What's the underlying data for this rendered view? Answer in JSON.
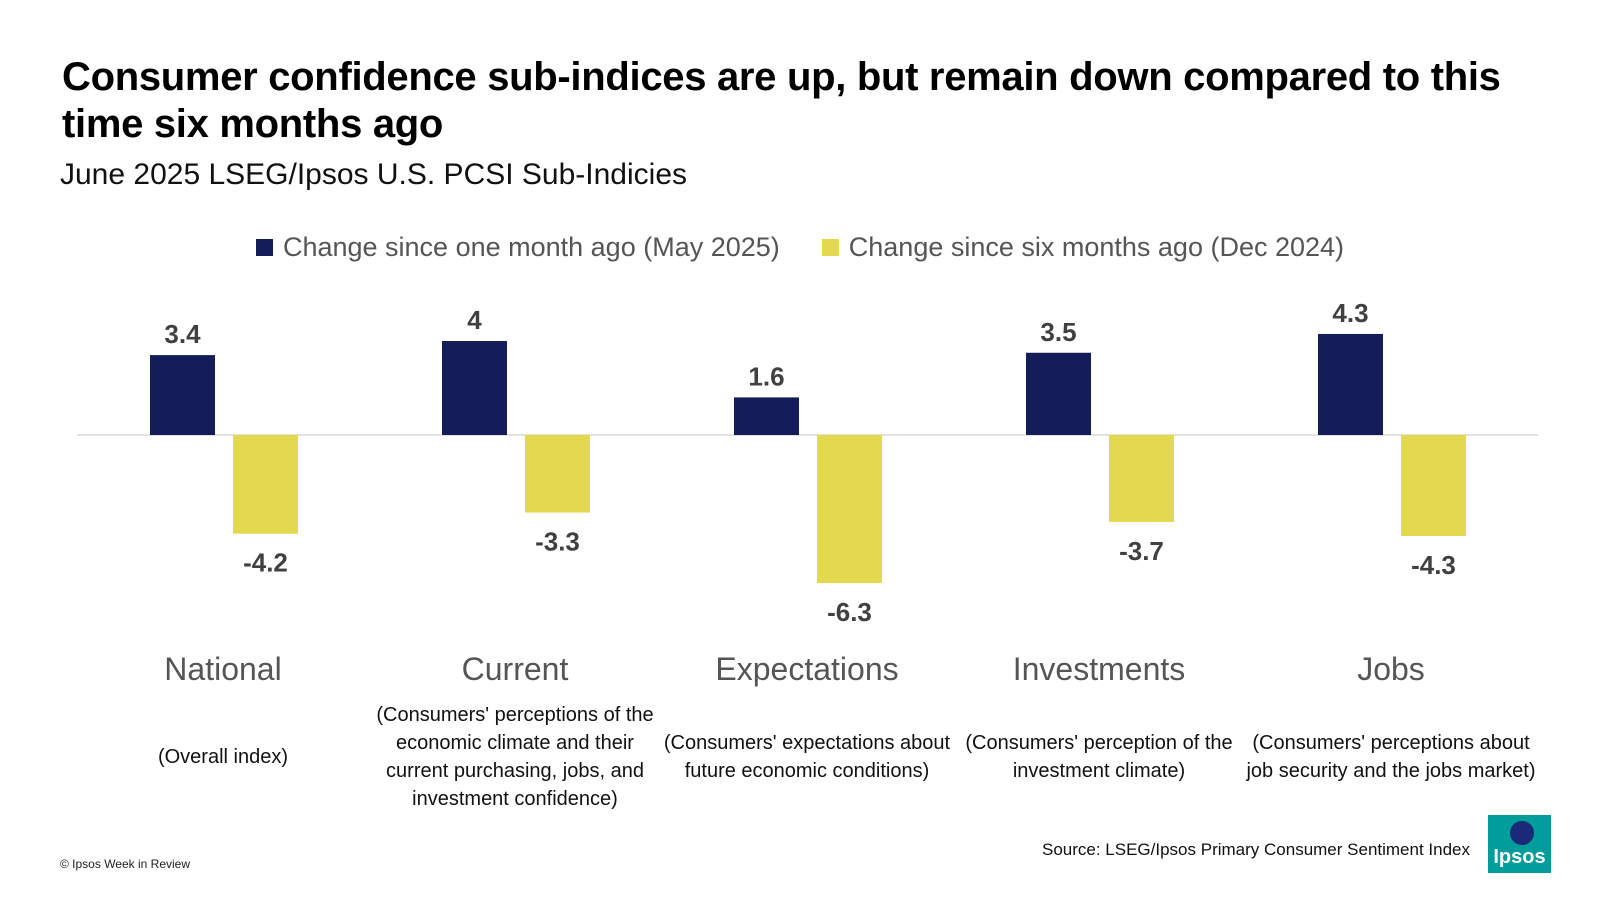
{
  "title": "Consumer confidence sub-indices are up, but remain down compared to this time six months ago",
  "subtitle": "June 2025 LSEG/Ipsos U.S. PCSI Sub-Indicies",
  "source": "Source: LSEG/Ipsos Primary Consumer Sentiment Index",
  "copyright": "© Ipsos Week in Review",
  "logo_text": "Ipsos",
  "colors": {
    "series1": "#141c5a",
    "series2": "#e2d94f",
    "logo": "#009d9a"
  },
  "chart_data": {
    "type": "bar",
    "categories": [
      "National",
      "Current",
      "Expectations",
      "Investments",
      "Jobs"
    ],
    "descriptions": [
      "(Overall index)",
      "(Consumers' perceptions of the economic climate and their current purchasing, jobs, and investment confidence)",
      "(Consumers' expectations about future economic conditions)",
      "(Consumers' perception of the investment climate)",
      "(Consumers' perceptions about job security and the jobs market)"
    ],
    "series": [
      {
        "name": "Change since one month ago (May 2025)",
        "values": [
          3.4,
          4,
          1.6,
          3.5,
          4.3
        ]
      },
      {
        "name": "Change since six months ago (Dec 2024)",
        "values": [
          -4.2,
          -3.3,
          -6.3,
          -3.7,
          -4.3
        ]
      }
    ],
    "ylim": [
      -6.3,
      4.3
    ],
    "legend": "top",
    "grid": false
  }
}
